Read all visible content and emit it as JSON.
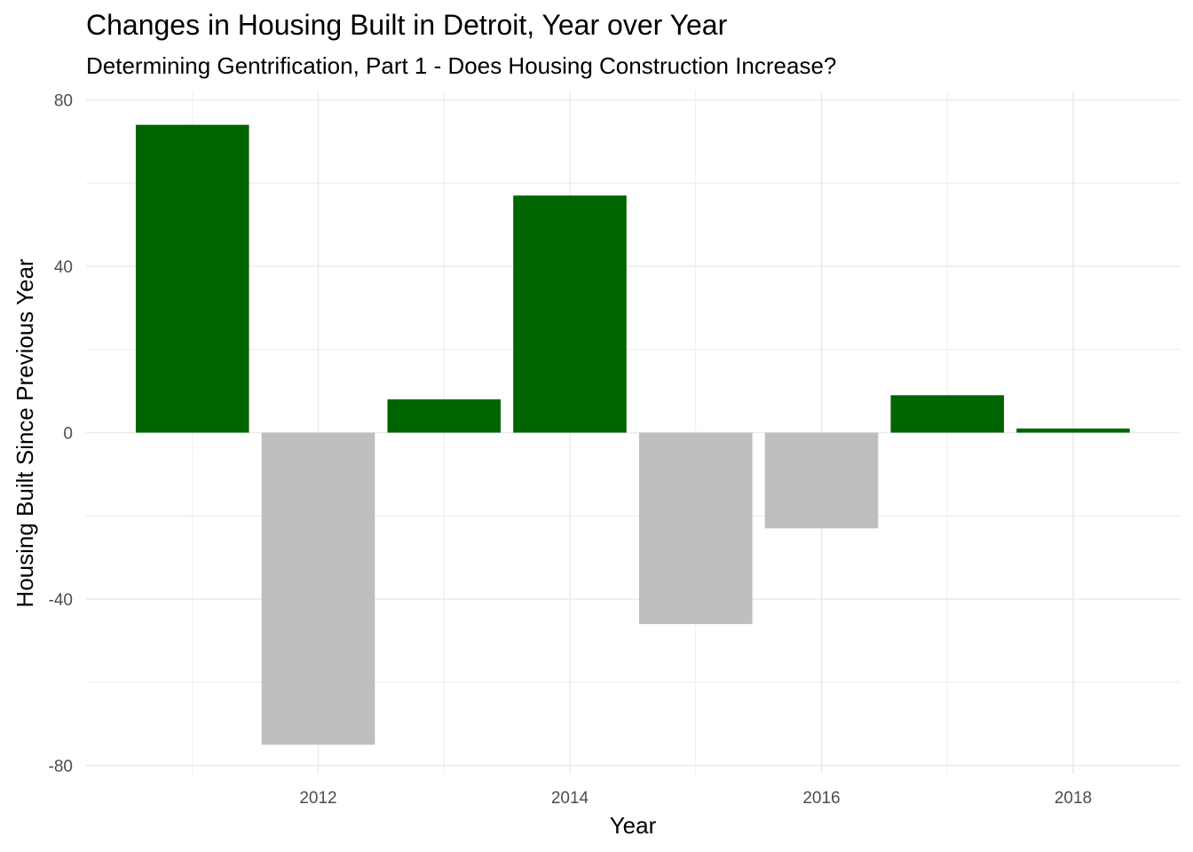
{
  "chart_data": {
    "type": "bar",
    "title": "Changes in Housing Built in Detroit, Year over Year",
    "subtitle": "Determining Gentrification, Part 1 - Does Housing Construction Increase?",
    "xlabel": "Year",
    "ylabel": "Housing Built Since Previous Year",
    "x": [
      2011,
      2012,
      2013,
      2014,
      2015,
      2016,
      2017,
      2018
    ],
    "values": [
      74,
      -75,
      8,
      57,
      -46,
      -23,
      9,
      1
    ],
    "x_ticks": [
      "2012",
      "2014",
      "2016",
      "2018"
    ],
    "y_ticks": [
      "80",
      "40",
      "0",
      "-40",
      "-80"
    ],
    "ylim": [
      -80,
      80
    ],
    "grid": true,
    "legend": "none",
    "colors": {
      "positive": "#006400",
      "negative": "#bebebe",
      "grid": "#ebebeb",
      "text": "#4d4d4d"
    }
  }
}
